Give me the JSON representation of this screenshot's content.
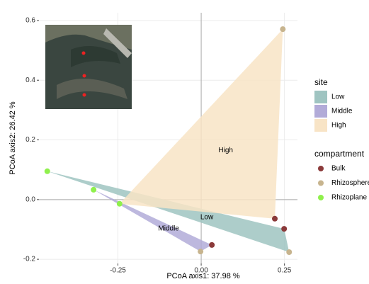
{
  "chart_data": {
    "type": "scatter",
    "xlabel": "PCoA axis1:  37.98 %",
    "ylabel": "PCoA axis2:  26.42 %",
    "xlim": [
      -0.487,
      0.289
    ],
    "ylim": [
      -0.214,
      0.626
    ],
    "xticks": [
      -0.25,
      {
        "value": 0,
        "label": "0.00"
      },
      0.25
    ],
    "yticks": [
      -0.2,
      {
        "value": 0,
        "label": "0.0"
      },
      0.2,
      0.4,
      0.6
    ],
    "grid": true,
    "zero_lines": true,
    "site_legend_title": "site",
    "sites": [
      {
        "name": "Low",
        "color": "#9fc4c1"
      },
      {
        "name": "Middle",
        "color": "#b2abd8"
      },
      {
        "name": "High",
        "color": "#f8e4c6"
      }
    ],
    "legend_title": "compartment",
    "series": [
      {
        "name": "Bulk",
        "color": "#8b3a3a",
        "x": [
          0.221,
          0.032,
          0.249
        ],
        "y": [
          -0.064,
          -0.152,
          -0.098
        ],
        "site": [
          "High",
          "Middle",
          "Low"
        ]
      },
      {
        "name": "Rhizosphere",
        "color": "#c7b48e",
        "x": [
          0.245,
          -0.002,
          0.264
        ],
        "y": [
          0.571,
          -0.174,
          -0.176
        ],
        "site": [
          "High",
          "Middle",
          "Low"
        ]
      },
      {
        "name": "Rhizoplane",
        "color": "#8ff04c",
        "x": [
          -0.245,
          -0.323,
          -0.462
        ],
        "y": [
          -0.014,
          0.033,
          0.095
        ],
        "site": [
          "High",
          "Middle",
          "Low"
        ]
      }
    ]
  }
}
